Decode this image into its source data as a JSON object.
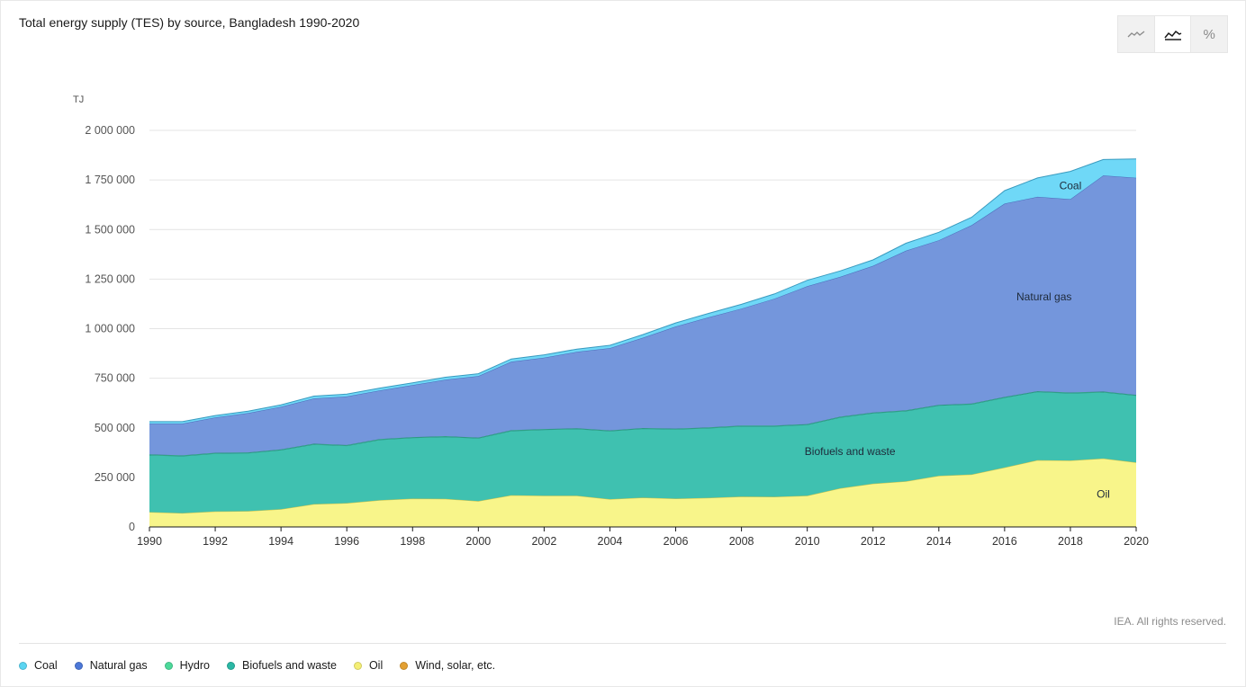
{
  "title": "Total energy supply (TES) by source, Bangladesh 1990-2020",
  "toolbar": {
    "buttons": [
      {
        "icon": "line-chart-icon",
        "active": false
      },
      {
        "icon": "area-chart-icon",
        "active": true
      },
      {
        "icon": "percent-icon",
        "label": "%",
        "active": false
      }
    ]
  },
  "credit": "IEA. All rights reserved.",
  "legend": [
    {
      "label": "Coal",
      "color": "#5bd5f2"
    },
    {
      "label": "Natural gas",
      "color": "#4c78d8"
    },
    {
      "label": "Hydro",
      "color": "#4cd99a"
    },
    {
      "label": "Biofuels and waste",
      "color": "#2bb8a5"
    },
    {
      "label": "Oil",
      "color": "#f5ef75"
    },
    {
      "label": "Wind, solar, etc.",
      "color": "#e3a032"
    }
  ],
  "chart_data": {
    "type": "area",
    "stacked": true,
    "title": "Total energy supply (TES) by source, Bangladesh 1990-2020",
    "ylabel": "TJ",
    "ylim": [
      0,
      2000000
    ],
    "yticks": [
      0,
      250000,
      500000,
      750000,
      1000000,
      1250000,
      1500000,
      1750000,
      2000000
    ],
    "ytick_labels": [
      "0",
      "250 000",
      "500 000",
      "750 000",
      "1 000 000",
      "1 250 000",
      "1 500 000",
      "1 750 000",
      "2 000 000"
    ],
    "xticks": [
      1990,
      1992,
      1994,
      1996,
      1998,
      2000,
      2002,
      2004,
      2006,
      2008,
      2010,
      2012,
      2014,
      2016,
      2018,
      2020
    ],
    "grid": true,
    "x": [
      1990,
      1991,
      1992,
      1993,
      1994,
      1995,
      1996,
      1997,
      1998,
      1999,
      2000,
      2001,
      2002,
      2003,
      2004,
      2005,
      2006,
      2007,
      2008,
      2009,
      2010,
      2011,
      2012,
      2013,
      2014,
      2015,
      2016,
      2017,
      2018,
      2019,
      2020
    ],
    "series": [
      {
        "name": "Oil",
        "color": "#f8f58a",
        "edge": "#c9c04a",
        "values": [
          75000,
          70000,
          78000,
          80000,
          90000,
          115000,
          120000,
          135000,
          143000,
          142000,
          130000,
          160000,
          158000,
          158000,
          140000,
          148000,
          143000,
          147000,
          153000,
          152000,
          158000,
          195000,
          218000,
          230000,
          258000,
          265000,
          300000,
          337000,
          335000,
          345000,
          325000
        ]
      },
      {
        "name": "Biofuels and waste",
        "color": "#3fc1b0",
        "edge": "#2b8f83",
        "values": [
          288000,
          288000,
          293000,
          293000,
          298000,
          302000,
          290000,
          305000,
          307000,
          313000,
          318000,
          325000,
          333000,
          337000,
          344000,
          348000,
          350000,
          352000,
          355000,
          356000,
          358000,
          358000,
          356000,
          355000,
          355000,
          354000,
          353000,
          345000,
          340000,
          335000,
          338000
        ]
      },
      {
        "name": "Hydro",
        "color": "#4cd99a",
        "edge": "#2b8f83",
        "values": [
          3000,
          3000,
          3000,
          3000,
          3000,
          3000,
          3000,
          3000,
          3000,
          3000,
          3000,
          3000,
          3000,
          3000,
          3000,
          3000,
          3000,
          3000,
          3000,
          3000,
          3000,
          3000,
          3000,
          3000,
          3000,
          3000,
          3000,
          3000,
          3000,
          3000,
          3000
        ]
      },
      {
        "name": "Natural gas",
        "color": "#7496dc",
        "edge": "#4a6ab8",
        "values": [
          155000,
          160000,
          178000,
          198000,
          215000,
          228000,
          245000,
          245000,
          262000,
          285000,
          310000,
          345000,
          360000,
          385000,
          415000,
          455000,
          515000,
          555000,
          590000,
          640000,
          695000,
          705000,
          740000,
          805000,
          830000,
          900000,
          975000,
          980000,
          975000,
          1090000,
          1095000
        ]
      },
      {
        "name": "Coal",
        "color": "#6fd8f7",
        "edge": "#3a9bbf",
        "values": [
          10000,
          10000,
          10000,
          10000,
          10000,
          12000,
          12000,
          12000,
          12000,
          12000,
          12000,
          14000,
          14000,
          14000,
          14000,
          16000,
          18000,
          20000,
          22000,
          24000,
          30000,
          30000,
          30000,
          38000,
          40000,
          40000,
          65000,
          95000,
          140000,
          80000,
          95000
        ]
      }
    ],
    "annotations": [
      {
        "text": "Coal",
        "x": 2018,
        "y": 1720000
      },
      {
        "text": "Natural gas",
        "x": 2017.2,
        "y": 1160000
      },
      {
        "text": "Biofuels and waste",
        "x": 2011.3,
        "y": 380000
      },
      {
        "text": "Oil",
        "x": 2019,
        "y": 165000
      }
    ]
  }
}
